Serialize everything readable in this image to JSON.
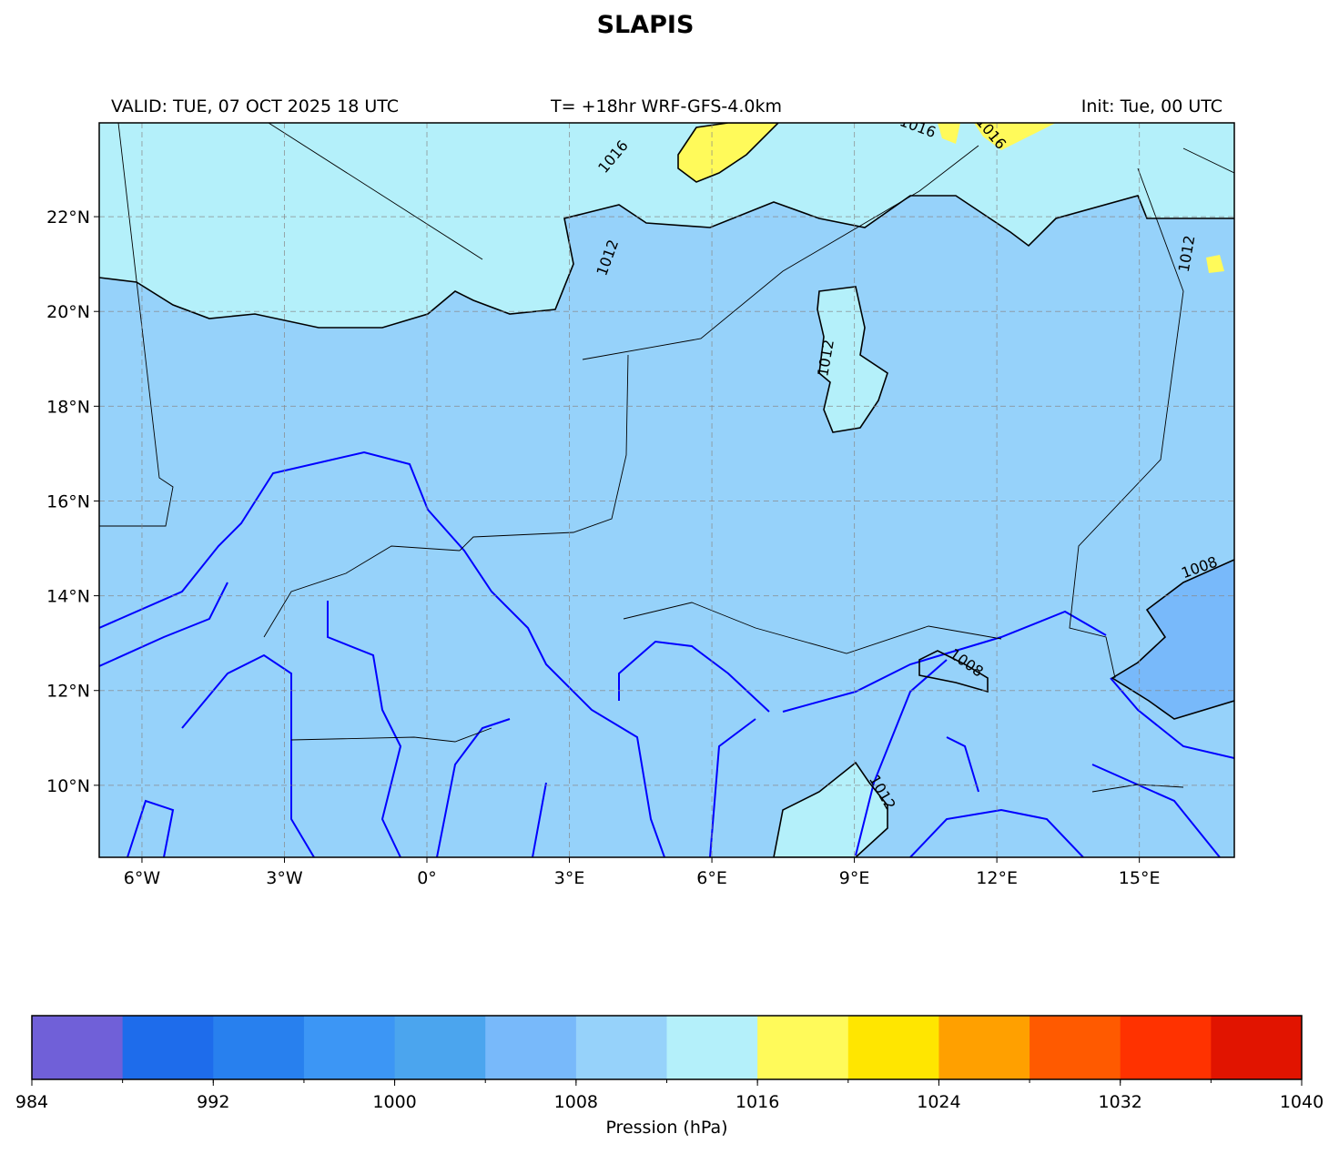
{
  "chart_data": {
    "type": "map",
    "title": "SLAPIS",
    "header_left": "VALID: TUE, 07 OCT 2025 18 UTC",
    "header_center": "T= +18hr WRF-GFS-4.0km",
    "header_right": "Init: Tue, 00 UTC",
    "xlim": [
      -6.9,
      17.0
    ],
    "ylim": [
      8.48,
      23.98
    ],
    "xticks": [
      {
        "value": -6,
        "label": "6°W"
      },
      {
        "value": -3,
        "label": "3°W"
      },
      {
        "value": 0,
        "label": "0°"
      },
      {
        "value": 3,
        "label": "3°E"
      },
      {
        "value": 6,
        "label": "6°E"
      },
      {
        "value": 9,
        "label": "9°E"
      },
      {
        "value": 12,
        "label": "12°E"
      },
      {
        "value": 15,
        "label": "15°E"
      }
    ],
    "yticks": [
      {
        "value": 10,
        "label": "10°N"
      },
      {
        "value": 12,
        "label": "12°N"
      },
      {
        "value": 14,
        "label": "14°N"
      },
      {
        "value": 16,
        "label": "16°N"
      },
      {
        "value": 18,
        "label": "18°N"
      },
      {
        "value": 20,
        "label": "20°N"
      },
      {
        "value": 22,
        "label": "22°N"
      }
    ],
    "grid": true,
    "contour_labels": [
      {
        "text": "1016",
        "lon": 4.0,
        "lat": 23.2,
        "angle": -50
      },
      {
        "text": "1016",
        "lon": 10.3,
        "lat": 23.8,
        "angle": 20
      },
      {
        "text": "1016",
        "lon": 11.8,
        "lat": 23.7,
        "angle": 50
      },
      {
        "text": "1012",
        "lon": 3.9,
        "lat": 21.1,
        "angle": -70
      },
      {
        "text": "1012",
        "lon": 8.5,
        "lat": 19.0,
        "angle": -80
      },
      {
        "text": "1012",
        "lon": 16.1,
        "lat": 21.2,
        "angle": -80
      },
      {
        "text": "1008",
        "lon": 16.3,
        "lat": 14.5,
        "angle": -20
      },
      {
        "text": "1008",
        "lon": 11.3,
        "lat": 12.5,
        "angle": 35
      },
      {
        "text": "1012",
        "lon": 9.5,
        "lat": 9.8,
        "angle": 60
      }
    ],
    "colorbar": {
      "label": "Pression (hPa)",
      "bins": [
        984,
        988,
        992,
        996,
        1000,
        1004,
        1008,
        1012,
        1016,
        1020,
        1024,
        1028,
        1032,
        1036,
        1040
      ],
      "colors": [
        "#7060d8",
        "#1e6ceb",
        "#2880ee",
        "#3c96f5",
        "#4ba5ee",
        "#78b9fa",
        "#96d2fa",
        "#b4f0fa",
        "#fffa5a",
        "#ffe600",
        "#ffa000",
        "#ff5a00",
        "#ff3200",
        "#e11400"
      ],
      "ticks": [
        984,
        992,
        1000,
        1008,
        1016,
        1024,
        1032,
        1040
      ]
    }
  }
}
